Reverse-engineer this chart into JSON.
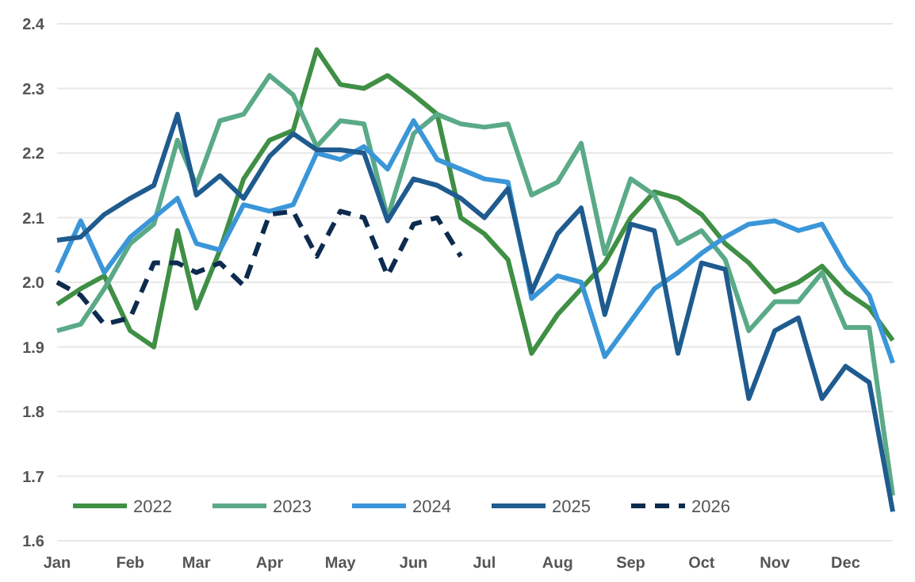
{
  "chart_data": {
    "type": "line",
    "x": [
      "--01-01",
      "--01-11",
      "--01-21",
      "--02-01",
      "--02-11",
      "--02-21",
      "--03-01",
      "--03-11",
      "--03-21",
      "--04-01",
      "--04-11",
      "--04-21",
      "--05-01",
      "--05-11",
      "--05-21",
      "--06-01",
      "--06-11",
      "--06-21",
      "--07-01",
      "--07-11",
      "--07-21",
      "--08-01",
      "--08-11",
      "--08-21",
      "--09-01",
      "--09-11",
      "--09-21",
      "--10-01",
      "--10-11",
      "--10-21",
      "--11-01",
      "--11-11",
      "--11-21",
      "--12-01",
      "--12-11",
      "--12-21"
    ],
    "series": [
      {
        "name": "2022",
        "color": "#3f8f45",
        "line_style": "solid",
        "values": [
          1.966,
          1.99,
          2.01,
          1.925,
          1.9,
          2.08,
          1.96,
          2.05,
          2.16,
          2.22,
          2.235,
          2.36,
          2.306,
          2.3,
          2.32,
          2.29,
          2.26,
          2.1,
          2.075,
          2.035,
          1.89,
          1.95,
          1.99,
          2.03,
          2.1,
          2.14,
          2.13,
          2.105,
          2.06,
          2.03,
          1.985,
          2.0,
          2.025,
          1.985,
          1.96,
          1.91
        ]
      },
      {
        "name": "2023",
        "color": "#5aaa88",
        "line_style": "solid",
        "values": [
          1.925,
          1.935,
          1.99,
          2.06,
          2.09,
          2.22,
          2.15,
          2.25,
          2.26,
          2.32,
          2.29,
          2.21,
          2.25,
          2.245,
          2.1,
          2.23,
          2.26,
          2.245,
          2.24,
          2.245,
          2.135,
          2.155,
          2.215,
          2.044,
          2.16,
          2.135,
          2.06,
          2.08,
          2.035,
          1.925,
          1.97,
          1.97,
          2.015,
          1.93,
          1.93,
          1.67
        ]
      },
      {
        "name": "2024",
        "color": "#3a96d8",
        "line_style": "solid",
        "values": [
          2.015,
          2.095,
          2.015,
          2.07,
          2.1,
          2.13,
          2.06,
          2.05,
          2.12,
          2.11,
          2.12,
          2.2,
          2.19,
          2.21,
          2.175,
          2.25,
          2.19,
          2.175,
          2.16,
          2.155,
          1.975,
          2.01,
          2.0,
          1.885,
          1.94,
          1.99,
          2.015,
          2.045,
          2.07,
          2.09,
          2.095,
          2.08,
          2.09,
          2.025,
          1.98,
          1.875
        ]
      },
      {
        "name": "2025",
        "color": "#1f5b8e",
        "line_style": "solid",
        "values": [
          2.065,
          2.07,
          2.105,
          2.13,
          2.15,
          2.26,
          2.135,
          2.165,
          2.13,
          2.195,
          2.23,
          2.205,
          2.205,
          2.2,
          2.095,
          2.16,
          2.15,
          2.13,
          2.1,
          2.145,
          1.985,
          2.075,
          2.115,
          1.95,
          2.09,
          2.08,
          1.89,
          2.03,
          2.02,
          1.82,
          1.925,
          1.945,
          1.82,
          1.87,
          1.845,
          1.645
        ]
      },
      {
        "name": "2026",
        "color": "#0d2b4e",
        "line_style": "dashed",
        "values": [
          2.0,
          1.98,
          1.935,
          1.945,
          2.03,
          2.03,
          2.015,
          2.03,
          1.995,
          2.105,
          2.11,
          2.04,
          2.11,
          2.1,
          2.01,
          2.09,
          2.1,
          2.04,
          null,
          null,
          null,
          null,
          null,
          null,
          null,
          null,
          null,
          null,
          null,
          null,
          null,
          null,
          null,
          null,
          null,
          null
        ]
      }
    ],
    "xlim": [
      "--01-01",
      "--12-21"
    ],
    "xticks": [
      {
        "value": "--01-01",
        "label": "Jan"
      },
      {
        "value": "--02-01",
        "label": "Feb"
      },
      {
        "value": "--03-01",
        "label": "Mar"
      },
      {
        "value": "--04-01",
        "label": "Apr"
      },
      {
        "value": "--05-01",
        "label": "May"
      },
      {
        "value": "--06-01",
        "label": "Jun"
      },
      {
        "value": "--07-01",
        "label": "Jul"
      },
      {
        "value": "--08-01",
        "label": "Aug"
      },
      {
        "value": "--09-01",
        "label": "Sep"
      },
      {
        "value": "--10-01",
        "label": "Oct"
      },
      {
        "value": "--11-01",
        "label": "Nov"
      },
      {
        "value": "--12-01",
        "label": "Dec"
      }
    ],
    "ylim": [
      1.6,
      2.4
    ],
    "yticks": [
      {
        "value": 1.6,
        "label": "1.6"
      },
      {
        "value": 1.7,
        "label": "1.7"
      },
      {
        "value": 1.8,
        "label": "1.8"
      },
      {
        "value": 1.9,
        "label": "1.9"
      },
      {
        "value": 2.0,
        "label": "2.0"
      },
      {
        "value": 2.1,
        "label": "2.1"
      },
      {
        "value": 2.2,
        "label": "2.2"
      },
      {
        "value": 2.3,
        "label": "2.3"
      },
      {
        "value": 2.4,
        "label": "2.4"
      }
    ],
    "grid": "y",
    "legend": "bottom left",
    "marker": "none"
  }
}
